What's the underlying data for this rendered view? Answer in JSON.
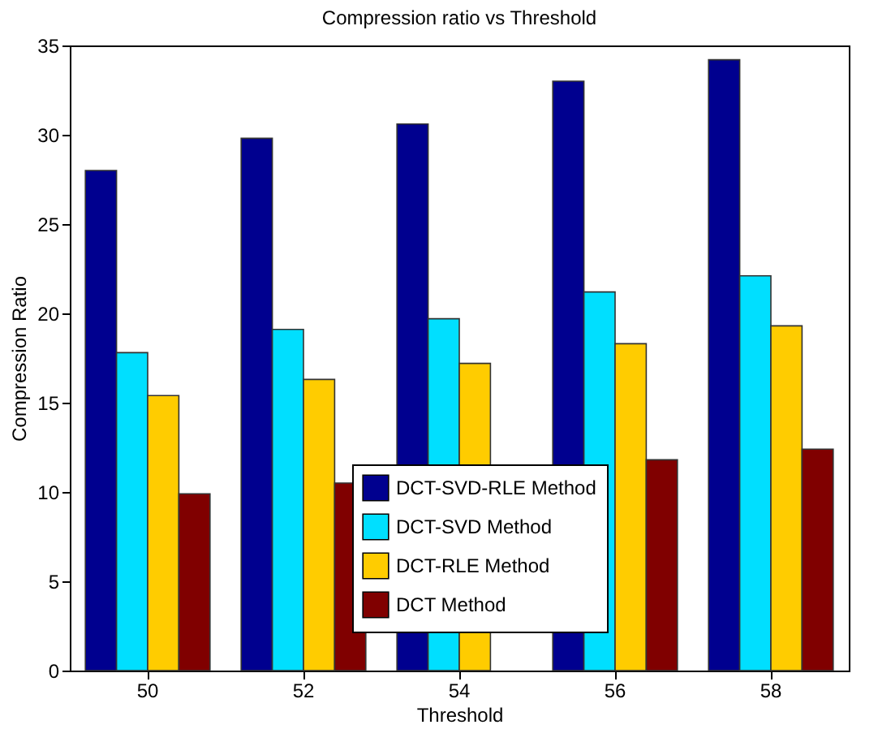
{
  "chart_data": {
    "type": "bar",
    "title": "Compression ratio vs Threshold",
    "xlabel": "Threshold",
    "ylabel": "Compression Ratio",
    "categories": [
      "50",
      "52",
      "54",
      "56",
      "58"
    ],
    "series": [
      {
        "name": "DCT-SVD-RLE Method",
        "color": "#00008f",
        "values": [
          28.0,
          29.8,
          30.6,
          33.0,
          34.2
        ]
      },
      {
        "name": "DCT-SVD Method",
        "color": "#00dfff",
        "values": [
          17.8,
          19.1,
          19.7,
          21.2,
          22.1
        ]
      },
      {
        "name": "DCT-RLE Method",
        "color": "#ffcc00",
        "values": [
          15.4,
          16.3,
          17.2,
          18.3,
          19.3
        ]
      },
      {
        "name": "DCT Method",
        "color": "#800000",
        "values": [
          9.9,
          10.5,
          null,
          11.8,
          12.4
        ]
      }
    ],
    "ylim": [
      0,
      35
    ],
    "yticks": [
      0,
      5,
      10,
      15,
      20,
      25,
      30,
      35
    ],
    "grid": false,
    "legend": "bottom"
  }
}
